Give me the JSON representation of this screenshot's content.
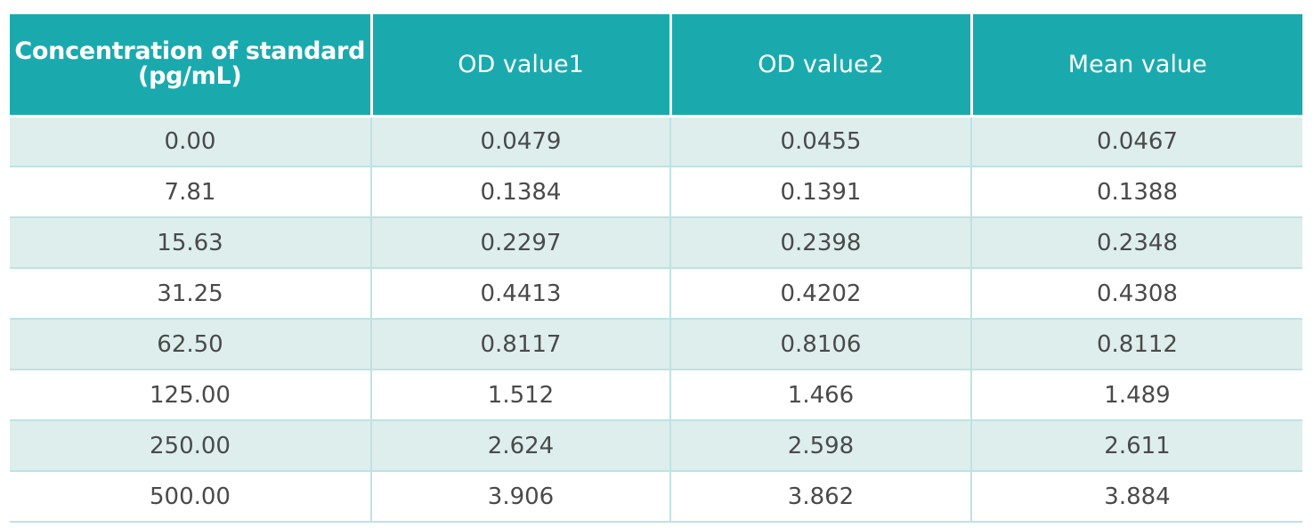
{
  "colors": {
    "header_bg": "#1aaaae",
    "header_text": "#ffffff",
    "row_alt_bg": "#ddeeed",
    "row_bg": "#ffffff",
    "grid": "#bde3e2",
    "cell_text": "#4a4a4a"
  },
  "chart_data": {
    "type": "table",
    "columns": [
      "Concentration of standard (pg/mL)",
      "OD value1",
      "OD value2",
      "Mean value"
    ],
    "rows": [
      [
        "0.00",
        "0.0479",
        "0.0455",
        "0.0467"
      ],
      [
        "7.81",
        "0.1384",
        "0.1391",
        "0.1388"
      ],
      [
        "15.63",
        "0.2297",
        "0.2398",
        "0.2348"
      ],
      [
        "31.25",
        "0.4413",
        "0.4202",
        "0.4308"
      ],
      [
        "62.50",
        "0.8117",
        "0.8106",
        "0.8112"
      ],
      [
        "125.00",
        "1.512",
        "1.466",
        "1.489"
      ],
      [
        "250.00",
        "2.624",
        "2.598",
        "2.611"
      ],
      [
        "500.00",
        "3.906",
        "3.862",
        "3.884"
      ]
    ]
  },
  "header": {
    "col1_line1": "Concentration of standard",
    "col1_line2": "(pg/mL)",
    "col2": "OD value1",
    "col3": "OD value2",
    "col4": "Mean value"
  }
}
